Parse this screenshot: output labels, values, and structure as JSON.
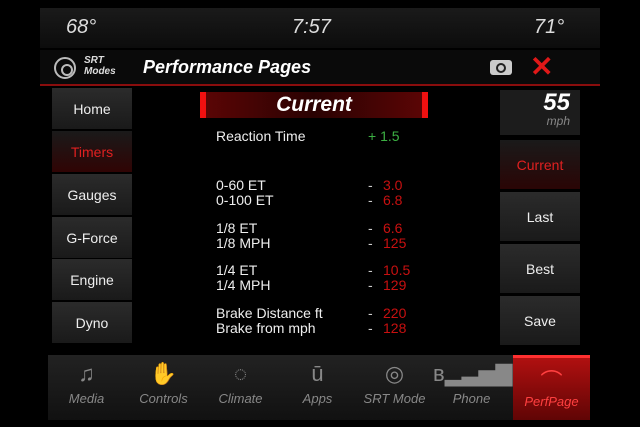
{
  "status": {
    "temp_left": "68°",
    "time": "7:57",
    "temp_right": "71°"
  },
  "header": {
    "logo_text": "SRT Modes",
    "title": "Performance Pages"
  },
  "sidebar": {
    "items": [
      {
        "label": "Home"
      },
      {
        "label": "Timers",
        "active": true
      },
      {
        "label": "Gauges"
      },
      {
        "label": "G-Force"
      },
      {
        "label": "Engine"
      },
      {
        "label": "Dyno"
      }
    ]
  },
  "speed": {
    "value": "55",
    "unit": "mph"
  },
  "right": {
    "items": [
      {
        "label": "Current",
        "active": true
      },
      {
        "label": "Last"
      },
      {
        "label": "Best"
      },
      {
        "label": "Save"
      }
    ]
  },
  "main": {
    "title": "Current",
    "reaction": {
      "label": "Reaction Time",
      "value": "+ 1.5"
    },
    "rows": [
      {
        "label": "0-60  ET",
        "value": "3.0"
      },
      {
        "label": "0-100 ET",
        "value": "6.8"
      },
      {
        "label": "1/8 ET",
        "value": "6.6"
      },
      {
        "label": "1/8 MPH",
        "value": "125"
      },
      {
        "label": "1/4 ET",
        "value": "10.5"
      },
      {
        "label": "1/4 MPH",
        "value": "129"
      },
      {
        "label": "Brake Distance ft",
        "value": "220"
      },
      {
        "label": "Brake from mph",
        "value": "128"
      }
    ],
    "dash": "-"
  },
  "bottom": {
    "items": [
      {
        "label": "Media",
        "icon": "music-icon"
      },
      {
        "label": "Controls",
        "icon": "controls-icon"
      },
      {
        "label": "Climate",
        "icon": "climate-icon"
      },
      {
        "label": "Apps",
        "icon": "apps-icon"
      },
      {
        "label": "SRT Mode",
        "icon": "steering-wheel-icon"
      },
      {
        "label": "Phone",
        "icon": "phone-signal-icon"
      },
      {
        "label": "PerfPage",
        "icon": "gauge-icon",
        "active": true
      }
    ]
  },
  "colors": {
    "accent": "#e01818",
    "value_red": "#c81010",
    "value_green": "#3cb043"
  }
}
